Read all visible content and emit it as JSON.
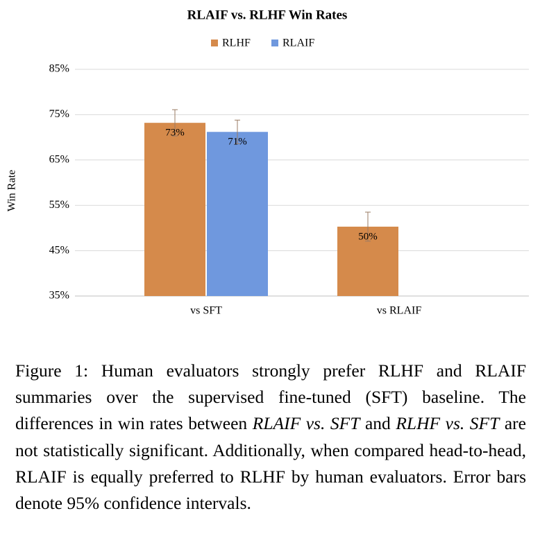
{
  "chart_data": {
    "type": "bar",
    "title": "RLAIF vs. RLHF Win Rates",
    "categories": [
      "vs SFT",
      "vs RLAIF"
    ],
    "series": [
      {
        "name": "RLHF",
        "color": "#d58a4b",
        "values": [
          73.2,
          50.3
        ],
        "value_labels": [
          "73%",
          "50%"
        ],
        "errors": [
          2.9,
          3.2
        ]
      },
      {
        "name": "RLAIF",
        "color": "#6f98de",
        "values": [
          71.2,
          null
        ],
        "value_labels": [
          "71%",
          null
        ],
        "errors": [
          2.6,
          null
        ]
      }
    ],
    "ylabel": "Win Rate",
    "ylim": [
      35,
      85
    ],
    "yticks": [
      {
        "value": 35,
        "label": "35%"
      },
      {
        "value": 45,
        "label": "45%"
      },
      {
        "value": 55,
        "label": "55%"
      },
      {
        "value": 65,
        "label": "65%"
      },
      {
        "value": 75,
        "label": "75%"
      },
      {
        "value": 85,
        "label": "85%"
      }
    ],
    "grid": true,
    "legend": "top"
  },
  "caption": [
    "Figure 1: Human evaluators strongly prefer RLHF and RLAIF summaries over the supervised fine-tuned (SFT) baseline. The differences in win rates between ",
    "RLAIF vs. SFT",
    " and ",
    "RLHF vs. SFT",
    " are not statistically significant. Additionally, when compared head-to-head, RLAIF is equally preferred to RLHF by human evaluators. Error bars denote 95% confidence intervals."
  ]
}
